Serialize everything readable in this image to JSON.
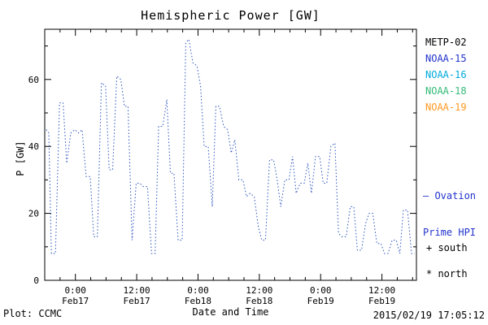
{
  "chart_data": {
    "type": "line",
    "title": "Hemispheric Power [GW]",
    "xlabel": "Date and Time",
    "ylabel": "P [GW]",
    "line_color": "#2a52be",
    "line_style": "dotted",
    "ylim": [
      0,
      75
    ],
    "yticks": [
      0,
      20,
      40,
      60
    ],
    "y_minor_step": 10,
    "xlim_hours": [
      0,
      72.75
    ],
    "x_minor_step": 3,
    "xticks": [
      {
        "t": 6,
        "time": "0:00",
        "date": "Feb17"
      },
      {
        "t": 18,
        "time": "12:00",
        "date": "Feb17"
      },
      {
        "t": 30,
        "time": "0:00",
        "date": "Feb18"
      },
      {
        "t": 42,
        "time": "12:00",
        "date": "Feb18"
      },
      {
        "t": 54,
        "time": "0:00",
        "date": "Feb19"
      },
      {
        "t": 66,
        "time": "12:00",
        "date": "Feb19"
      }
    ],
    "points": [
      [
        0.3,
        45
      ],
      [
        0.8,
        44
      ],
      [
        1.3,
        8
      ],
      [
        2.1,
        8
      ],
      [
        2.9,
        53
      ],
      [
        3.6,
        53
      ],
      [
        4.3,
        35
      ],
      [
        5.1,
        44
      ],
      [
        5.9,
        45
      ],
      [
        6.6,
        44
      ],
      [
        7.3,
        45
      ],
      [
        8.1,
        31
      ],
      [
        8.9,
        31
      ],
      [
        9.6,
        13
      ],
      [
        10.3,
        13
      ],
      [
        11.1,
        59
      ],
      [
        11.9,
        58
      ],
      [
        12.6,
        33
      ],
      [
        13.3,
        33
      ],
      [
        14.1,
        61
      ],
      [
        14.9,
        60
      ],
      [
        15.6,
        52
      ],
      [
        16.3,
        52
      ],
      [
        17.1,
        12
      ],
      [
        17.9,
        29
      ],
      [
        18.6,
        29
      ],
      [
        19.3,
        28
      ],
      [
        20.1,
        28
      ],
      [
        20.9,
        8
      ],
      [
        21.6,
        8
      ],
      [
        22.3,
        46
      ],
      [
        23.1,
        46
      ],
      [
        23.9,
        54
      ],
      [
        24.6,
        32
      ],
      [
        25.3,
        32
      ],
      [
        26.1,
        12
      ],
      [
        26.9,
        12
      ],
      [
        27.6,
        71
      ],
      [
        28.2,
        72
      ],
      [
        29.0,
        65
      ],
      [
        29.8,
        64
      ],
      [
        30.5,
        58
      ],
      [
        31.2,
        40
      ],
      [
        32.0,
        40
      ],
      [
        32.8,
        22
      ],
      [
        33.5,
        52
      ],
      [
        34.2,
        52
      ],
      [
        35.0,
        46
      ],
      [
        35.8,
        45
      ],
      [
        36.5,
        38
      ],
      [
        37.2,
        42
      ],
      [
        38.0,
        30
      ],
      [
        38.8,
        30
      ],
      [
        39.5,
        25
      ],
      [
        40.2,
        26
      ],
      [
        41.0,
        25
      ],
      [
        41.8,
        16
      ],
      [
        42.5,
        12
      ],
      [
        43.2,
        12
      ],
      [
        44.0,
        36
      ],
      [
        44.8,
        36
      ],
      [
        45.5,
        30
      ],
      [
        46.2,
        22
      ],
      [
        47.0,
        30
      ],
      [
        47.8,
        30
      ],
      [
        48.5,
        37
      ],
      [
        49.2,
        26
      ],
      [
        50.0,
        29
      ],
      [
        50.8,
        29
      ],
      [
        51.5,
        35
      ],
      [
        52.2,
        26
      ],
      [
        53.0,
        37
      ],
      [
        53.8,
        37
      ],
      [
        54.5,
        29
      ],
      [
        55.2,
        29
      ],
      [
        56.0,
        40
      ],
      [
        56.8,
        41
      ],
      [
        57.5,
        14
      ],
      [
        58.2,
        13
      ],
      [
        59.0,
        13
      ],
      [
        59.8,
        22
      ],
      [
        60.5,
        22
      ],
      [
        61.2,
        9
      ],
      [
        62.0,
        9
      ],
      [
        62.8,
        17
      ],
      [
        63.5,
        20
      ],
      [
        64.2,
        20
      ],
      [
        65.0,
        11
      ],
      [
        65.8,
        11
      ],
      [
        66.5,
        8
      ],
      [
        67.2,
        8
      ],
      [
        68.0,
        12
      ],
      [
        68.8,
        12
      ],
      [
        69.5,
        8
      ],
      [
        70.2,
        21
      ],
      [
        71.0,
        21
      ],
      [
        71.8,
        8
      ],
      [
        72.4,
        8
      ]
    ]
  },
  "legend": {
    "satellites": [
      {
        "label": "METP-02",
        "color": "#000000"
      },
      {
        "label": "NOAA-15",
        "color": "#2233cc"
      },
      {
        "label": "NOAA-16",
        "color": "#00aadd"
      },
      {
        "label": "NOAA-18",
        "color": "#33bb77"
      },
      {
        "label": "NOAA-19",
        "color": "#ff9922"
      }
    ],
    "ovation_line1": "– Ovation",
    "ovation_line2": "Prime HPI",
    "ovation_color": "#2233cc",
    "south_label": "+ south",
    "north_label": "* north"
  },
  "footer": {
    "credit": "Plot: CCMC",
    "timestamp": "2015/02/19 17:05:12"
  }
}
